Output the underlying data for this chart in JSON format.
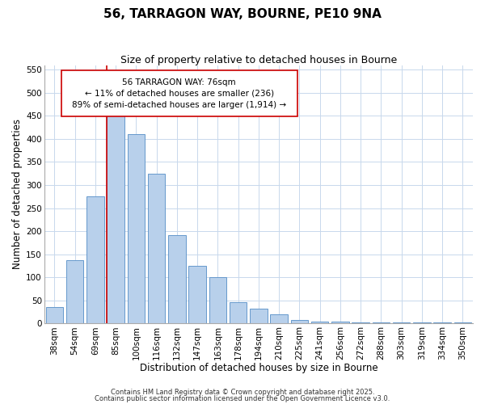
{
  "title": "56, TARRAGON WAY, BOURNE, PE10 9NA",
  "subtitle": "Size of property relative to detached houses in Bourne",
  "xlabel": "Distribution of detached houses by size in Bourne",
  "ylabel": "Number of detached properties",
  "categories": [
    "38sqm",
    "54sqm",
    "69sqm",
    "85sqm",
    "100sqm",
    "116sqm",
    "132sqm",
    "147sqm",
    "163sqm",
    "178sqm",
    "194sqm",
    "210sqm",
    "225sqm",
    "241sqm",
    "256sqm",
    "272sqm",
    "288sqm",
    "303sqm",
    "319sqm",
    "334sqm",
    "350sqm"
  ],
  "values": [
    35,
    137,
    275,
    450,
    410,
    325,
    192,
    125,
    100,
    46,
    32,
    20,
    7,
    5,
    5,
    2,
    2,
    2,
    2,
    2,
    2
  ],
  "bar_color": "#b8d0eb",
  "bar_edge_color": "#6699cc",
  "vline_color": "#cc0000",
  "annotation_box_text": "56 TARRAGON WAY: 76sqm\n← 11% of detached houses are smaller (236)\n89% of semi-detached houses are larger (1,914) →",
  "annotation_box_edge_color": "#cc0000",
  "ylim": [
    0,
    560
  ],
  "yticks": [
    0,
    50,
    100,
    150,
    200,
    250,
    300,
    350,
    400,
    450,
    500,
    550
  ],
  "background_color": "#ffffff",
  "grid_color": "#c8d8ec",
  "footer_line1": "Contains HM Land Registry data © Crown copyright and database right 2025.",
  "footer_line2": "Contains public sector information licensed under the Open Government Licence v3.0.",
  "title_fontsize": 11,
  "subtitle_fontsize": 9,
  "xlabel_fontsize": 8.5,
  "ylabel_fontsize": 8.5,
  "tick_fontsize": 7.5,
  "annotation_fontsize": 7.5,
  "footer_fontsize": 6
}
